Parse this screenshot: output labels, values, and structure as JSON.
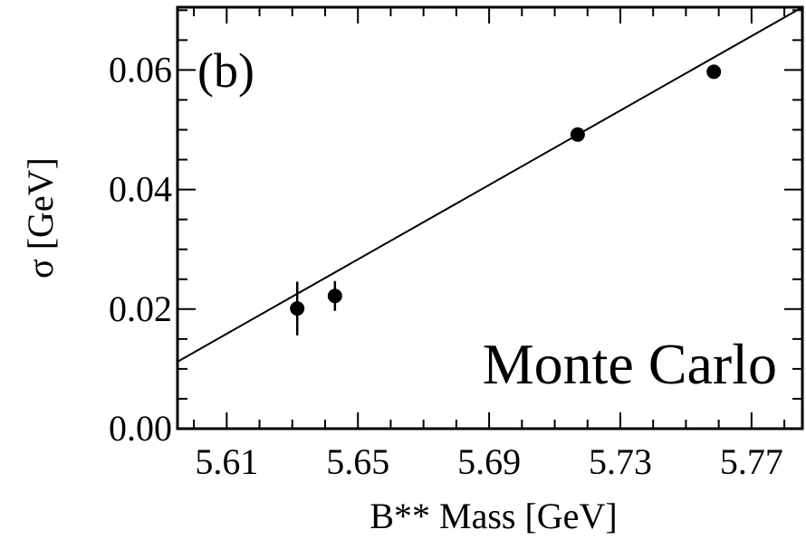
{
  "chart_data": {
    "type": "scatter",
    "panel_label": "(b)",
    "annotation": "Monte Carlo",
    "xlabel": "B** Mass [GeV]",
    "ylabel": "σ [GeV]",
    "xlim": [
      5.595,
      5.7855
    ],
    "ylim": [
      0.0,
      0.0705
    ],
    "x_ticks": [
      5.61,
      5.65,
      5.69,
      5.73,
      5.77
    ],
    "x_tick_labels": [
      "5.61",
      "5.65",
      "5.69",
      "5.73",
      "5.77"
    ],
    "y_ticks": [
      0.0,
      0.02,
      0.04,
      0.06
    ],
    "y_tick_labels": [
      "0.00",
      "0.02",
      "0.04",
      "0.06"
    ],
    "grid": false,
    "points": [
      {
        "x": 5.6315,
        "y": 0.0201,
        "yerr": 0.0045
      },
      {
        "x": 5.643,
        "y": 0.0222,
        "yerr": 0.0025
      },
      {
        "x": 5.717,
        "y": 0.0492,
        "yerr": 0.0008
      },
      {
        "x": 5.7585,
        "y": 0.0597,
        "yerr": 0.001
      }
    ],
    "fit_line": {
      "x": [
        5.595,
        5.7855
      ],
      "y": [
        0.0112,
        0.0705
      ]
    },
    "colors": {
      "axis": "#000000",
      "marker": "#000000",
      "background": "#ffffff"
    }
  }
}
